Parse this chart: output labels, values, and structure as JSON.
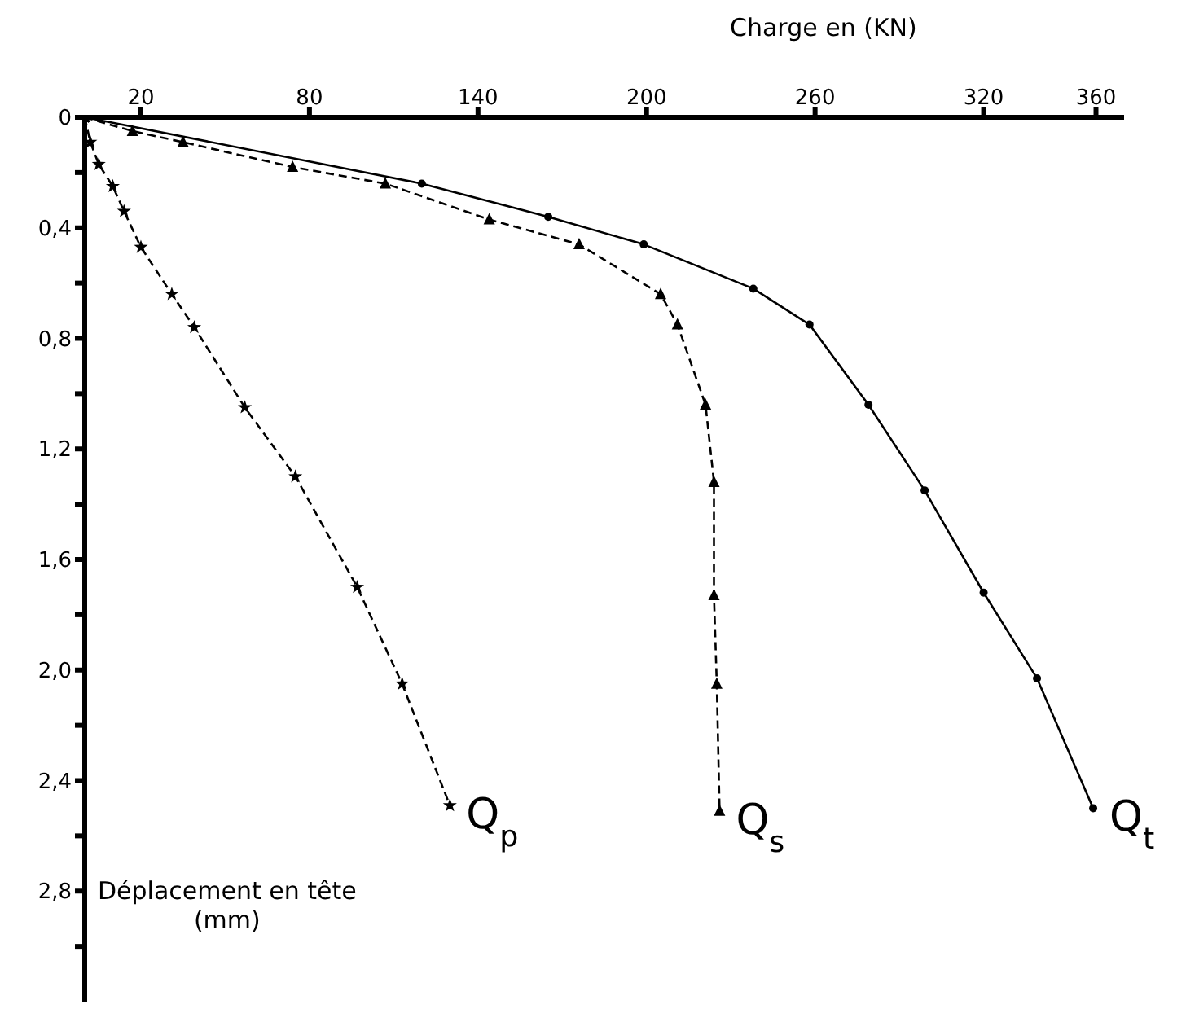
{
  "chart_data": {
    "type": "line",
    "xlabel": "Charge en (KN)",
    "ylabel": "Déplacement en tête\n(mm)",
    "xlim": [
      0,
      370
    ],
    "xticks": [
      20,
      80,
      140,
      200,
      260,
      320,
      360
    ],
    "ylim": [
      3.2,
      0
    ],
    "yticks": [
      {
        "value": 0,
        "label": "0"
      },
      {
        "value": 0.2,
        "label": null
      },
      {
        "value": 0.4,
        "label": "0,4"
      },
      {
        "value": 0.6,
        "label": null
      },
      {
        "value": 0.8,
        "label": "0,8"
      },
      {
        "value": 1.0,
        "label": null
      },
      {
        "value": 1.2,
        "label": "1,2"
      },
      {
        "value": 1.4,
        "label": null
      },
      {
        "value": 1.6,
        "label": "1,6"
      },
      {
        "value": 1.8,
        "label": null
      },
      {
        "value": 2.0,
        "label": "2,0"
      },
      {
        "value": 2.2,
        "label": null
      },
      {
        "value": 2.4,
        "label": "2,4"
      },
      {
        "value": 2.6,
        "label": null
      },
      {
        "value": 2.8,
        "label": "2,8"
      },
      {
        "value": 3.0,
        "label": null
      }
    ],
    "series": [
      {
        "name": "Q$_{p}$",
        "color": "#000000",
        "marker": "star",
        "line_style": "dashed",
        "x": [
          0,
          2,
          5,
          10,
          14,
          20,
          31,
          39,
          57,
          75,
          97,
          113,
          130
        ],
        "values": [
          0,
          0.09,
          0.17,
          0.25,
          0.34,
          0.47,
          0.64,
          0.76,
          1.05,
          1.3,
          1.7,
          2.05,
          2.49
        ]
      },
      {
        "name": "Q$_{s}$",
        "color": "#000000",
        "marker": "triangle",
        "line_style": "dashed",
        "x": [
          0,
          17,
          35,
          74,
          107,
          144,
          176,
          205,
          211,
          221,
          224,
          224,
          225,
          226
        ],
        "values": [
          0,
          0.05,
          0.09,
          0.18,
          0.24,
          0.37,
          0.46,
          0.64,
          0.75,
          1.04,
          1.32,
          1.73,
          2.05,
          2.51
        ]
      },
      {
        "name": "Q$_{t}$",
        "color": "#000000",
        "marker": "circle",
        "line_style": "solid",
        "x": [
          0,
          120,
          165,
          199,
          238,
          258,
          279,
          299,
          320,
          339,
          359
        ],
        "values": [
          0,
          0.24,
          0.36,
          0.46,
          0.62,
          0.75,
          1.04,
          1.35,
          1.72,
          2.03,
          2.5
        ]
      }
    ]
  }
}
